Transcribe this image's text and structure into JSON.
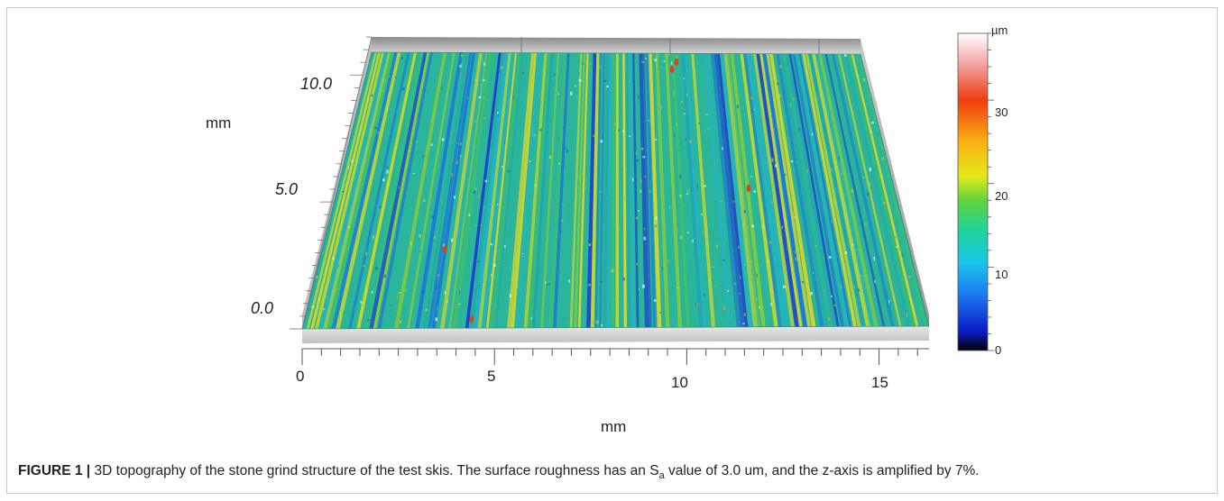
{
  "figure": {
    "x_axis": {
      "label": "mm",
      "ticks": [
        "0",
        "5",
        "10",
        "15"
      ]
    },
    "y_axis": {
      "label": "mm",
      "ticks": [
        "0.0",
        "5.0",
        "10.0"
      ]
    },
    "colorbar": {
      "unit": "µm",
      "ticks": [
        "0",
        "10",
        "20",
        "30"
      ],
      "range": [
        0,
        38
      ],
      "colors": [
        "#000000",
        "#0a1cc8",
        "#1e7cf0",
        "#18c8e8",
        "#20d49a",
        "#5ed240",
        "#e4e81a",
        "#f8b012",
        "#ef3d10",
        "#f3a0a0",
        "#ffffff"
      ]
    },
    "surface": {
      "description_palette": "blue-green-yellow stone grind grooves",
      "base_color": "#2bb59a",
      "wall_color": "#a8a8a8"
    }
  },
  "caption": {
    "label": "FIGURE 1 |",
    "text_before_sub": " 3D topography of the stone grind structure of the test skis. The surface roughness has an S",
    "sub": "a",
    "text_after_sub": " value of 3.0 um, and the z-axis is amplified by 7%."
  }
}
